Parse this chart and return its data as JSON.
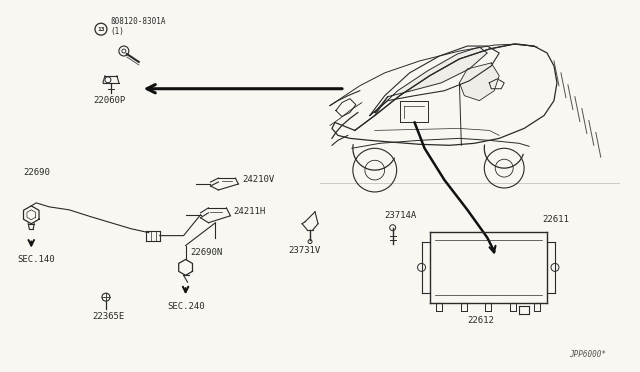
{
  "bg_color": "#f8f7f2",
  "line_color": "#2a2a2a",
  "diagram_code": "JPP6000*",
  "labels": {
    "bolt_label": "ß08120-8301A",
    "bolt_qty": "(1)",
    "part_22060P": "22060P",
    "part_22690": "22690",
    "part_24210V": "24210V",
    "part_24211H": "24211H",
    "part_23731V": "23731V",
    "part_23714A": "23714A",
    "part_22611": "22611",
    "part_22612": "22612",
    "part_22690N": "22690N",
    "sec140": "SEC.140",
    "sec240": "SEC.240",
    "part_22365E": "22365E"
  },
  "font_size_label": 6.5,
  "font_size_small": 5.5,
  "car": {
    "body_pts_x": [
      310,
      330,
      360,
      400,
      440,
      480,
      510,
      530,
      545,
      555,
      560,
      558,
      550,
      535,
      515,
      490,
      460,
      420,
      390,
      355,
      330,
      310
    ],
    "body_pts_y": [
      125,
      100,
      75,
      55,
      42,
      38,
      40,
      48,
      62,
      80,
      100,
      120,
      138,
      148,
      153,
      155,
      153,
      150,
      148,
      148,
      140,
      125
    ]
  }
}
